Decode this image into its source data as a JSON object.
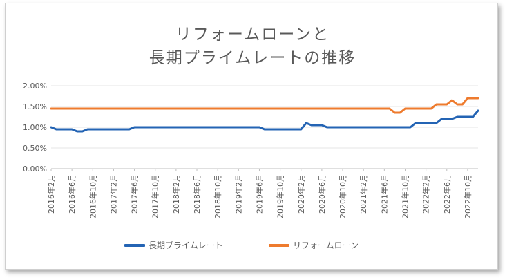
{
  "chart_data": {
    "type": "line",
    "title_line1": "リフォームローンと",
    "title_line2": "長期プライムレートの推移",
    "xlabel": "",
    "ylabel": "",
    "ylim": [
      0,
      2.0
    ],
    "y_ticks": [
      "0.00%",
      "0.50%",
      "1.00%",
      "1.50%",
      "2.00%"
    ],
    "x_labels": [
      "2016年2月",
      "2016年6月",
      "2016年10月",
      "2017年2月",
      "2017年6月",
      "2017年10月",
      "2018年2月",
      "2018年6月",
      "2018年10月",
      "2019年2月",
      "2019年6月",
      "2019年10月",
      "2020年2月",
      "2020年6月",
      "2020年10月",
      "2021年2月",
      "2021年6月",
      "2021年10月",
      "2022年2月",
      "2022年6月",
      "2022年10月"
    ],
    "legend_position": "bottom",
    "grid": true,
    "series": [
      {
        "name": "長期プライムレート",
        "color": "#2464b4",
        "points": [
          [
            0,
            1.0
          ],
          [
            1,
            0.95
          ],
          [
            3,
            0.95
          ],
          [
            4,
            0.95
          ],
          [
            5,
            0.9
          ],
          [
            6,
            0.9
          ],
          [
            7,
            0.95
          ],
          [
            15,
            0.95
          ],
          [
            16,
            1.0
          ],
          [
            40,
            1.0
          ],
          [
            41,
            0.95
          ],
          [
            48,
            0.95
          ],
          [
            49,
            1.1
          ],
          [
            50,
            1.05
          ],
          [
            52,
            1.05
          ],
          [
            53,
            1.0
          ],
          [
            69,
            1.0
          ],
          [
            70,
            1.1
          ],
          [
            74,
            1.1
          ],
          [
            75,
            1.2
          ],
          [
            77,
            1.2
          ],
          [
            78,
            1.25
          ],
          [
            81,
            1.25
          ],
          [
            82,
            1.4
          ]
        ]
      },
      {
        "name": "リフォームローン",
        "color": "#ee7b2e",
        "points": [
          [
            0,
            1.45
          ],
          [
            65,
            1.45
          ],
          [
            66,
            1.35
          ],
          [
            67,
            1.35
          ],
          [
            68,
            1.45
          ],
          [
            73,
            1.45
          ],
          [
            74,
            1.55
          ],
          [
            76,
            1.55
          ],
          [
            77,
            1.65
          ],
          [
            78,
            1.55
          ],
          [
            79,
            1.55
          ],
          [
            80,
            1.7
          ],
          [
            82,
            1.7
          ]
        ]
      }
    ]
  }
}
